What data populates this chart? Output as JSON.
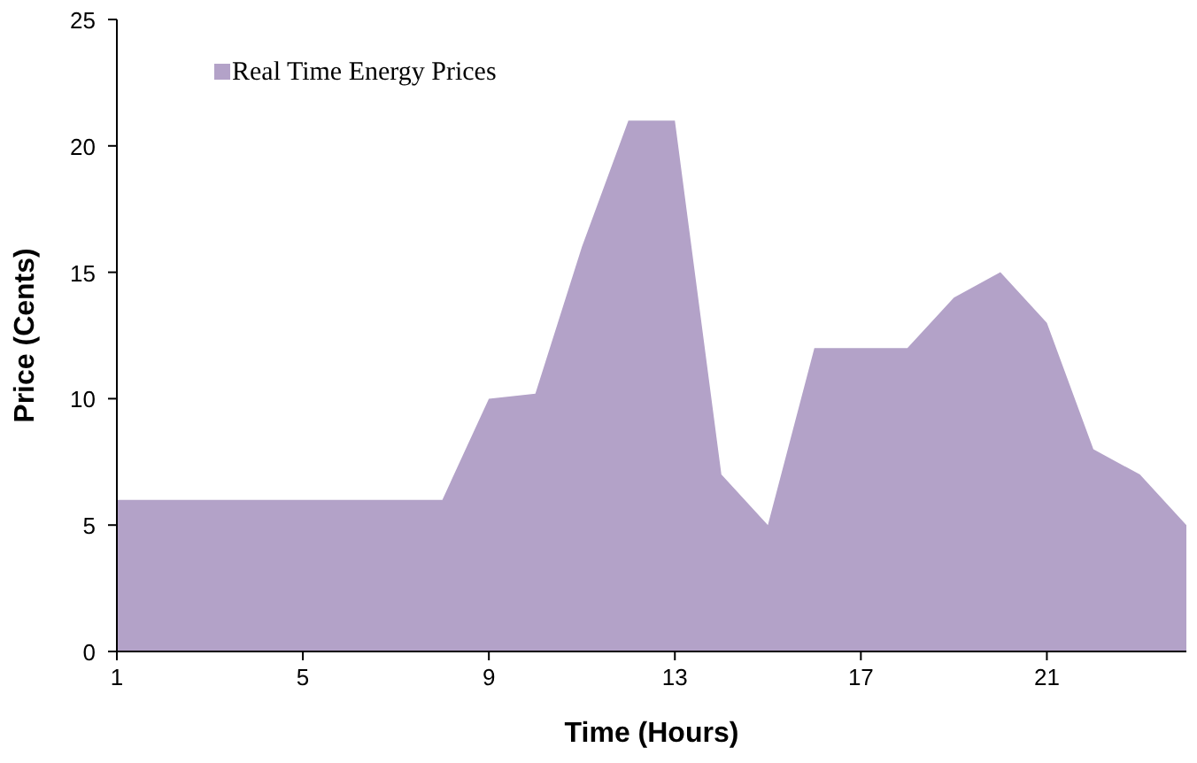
{
  "chart_data": {
    "type": "area",
    "xlabel": "Time (Hours)",
    "ylabel": "Price (Cents)",
    "x": [
      1,
      2,
      3,
      4,
      5,
      6,
      7,
      8,
      9,
      10,
      11,
      12,
      13,
      14,
      15,
      16,
      17,
      18,
      19,
      20,
      21,
      22,
      23,
      24
    ],
    "series": [
      {
        "name": "Real Time Energy Prices",
        "color": "#b3a2c8",
        "values": [
          6,
          6,
          6,
          6,
          6,
          6,
          6,
          6,
          10,
          10.2,
          16,
          21,
          21,
          7,
          5,
          12,
          12,
          12,
          14,
          15,
          13,
          8,
          7,
          5
        ]
      }
    ],
    "xlim": [
      1,
      24
    ],
    "xticks": [
      1,
      5,
      9,
      13,
      17,
      21
    ],
    "ylim": [
      0,
      25
    ],
    "yticks": [
      0,
      5,
      10,
      15,
      20,
      25
    ],
    "grid": false,
    "legend": "top left"
  }
}
